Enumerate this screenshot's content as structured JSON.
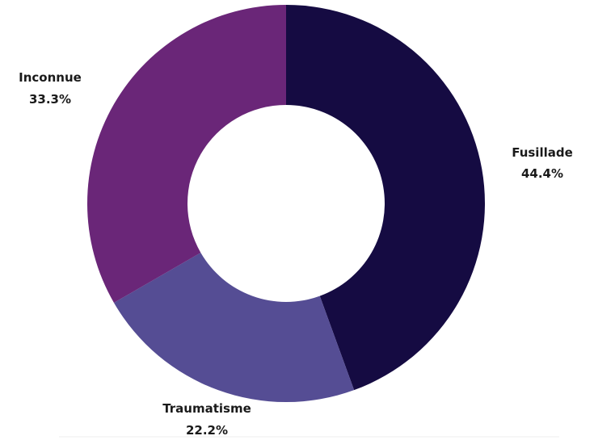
{
  "chart_data": {
    "type": "pie",
    "donut": true,
    "title": "",
    "legend": "none",
    "slices": [
      {
        "label": "Fusillade",
        "percent_label": "44.4%",
        "value": 44.4,
        "color": "#150b42"
      },
      {
        "label": "Traumatisme",
        "percent_label": "22.2%",
        "value": 22.2,
        "color": "#554d94"
      },
      {
        "label": "Inconnue",
        "percent_label": "33.3%",
        "value": 33.3,
        "color": "#6a2678"
      }
    ]
  }
}
